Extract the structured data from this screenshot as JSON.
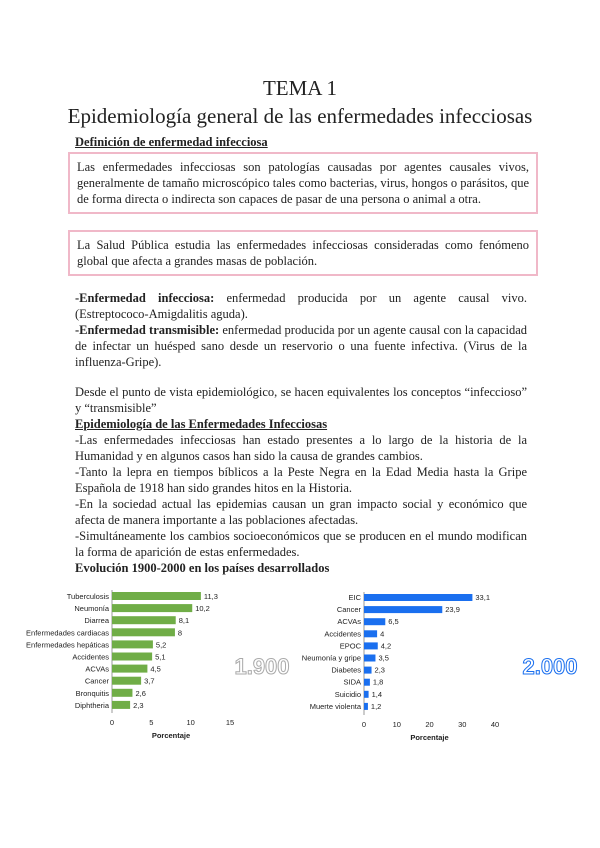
{
  "title": "TEMA 1",
  "subtitle": "Epidemiología general de las enfermedades infecciosas",
  "section1": "Definición de enfermedad infecciosa",
  "box1": "Las enfermedades infecciosas son patologías causadas por agentes causales vivos, generalmente de tamaño microscópico tales como bacterias, virus, hongos o parásitos, que de forma directa o indirecta son capaces de pasar de una persona o animal a otra.",
  "box2": "La Salud Pública estudia las enfermedades infecciosas consideradas como fenómeno global que afecta a grandes masas de población.",
  "def1_term": "-Enfermedad infecciosa:",
  "def1_text": " enfermedad producida por un agente causal vivo. (Estreptococo-Amigdalitis aguda).",
  "def2_term": "-Enfermedad transmisible:",
  "def2_text": " enfermedad producida por un agente causal con la capacidad de infectar un huésped sano desde un reservorio o una fuente infectiva. (Virus de la influenza-Gripe).",
  "para1": "Desde el punto de vista epidemiológico, se hacen equivalentes los conceptos “infeccioso” y “transmisible”",
  "section2": "Epidemiología de las Enfermedades Infecciosas",
  "bullets": [
    "-Las enfermedades infecciosas han estado presentes a lo largo de la historia de la Humanidad y en algunos casos han sido la causa de grandes cambios.",
    "-Tanto la lepra en tiempos bíblicos a la Peste Negra en la Edad Media hasta la Gripe Española de 1918 han sido grandes hitos en la Historia.",
    "-En la sociedad actual las epidemias causan un gran impacto social y económico que afecta de manera importante a las poblaciones afectadas.",
    "-Simultáneamente los cambios socioeconómicos que se producen en el mundo modifican la forma de aparición de estas enfermedades."
  ],
  "section3": "Evolución 1900-2000 en los países desarrollados",
  "chart_data": [
    {
      "type": "bar",
      "orientation": "horizontal",
      "watermark": "1.900",
      "color": "#70ad47",
      "categories": [
        "Tuberculosis",
        "Neumonía",
        "Diarrea",
        "Enfermedades cardiacas",
        "Enfermedades hepáticas",
        "Accidentes",
        "ACVAs",
        "Cancer",
        "Bronquitis",
        "Diphtheria"
      ],
      "values": [
        11.3,
        10.2,
        8.1,
        8,
        5.2,
        5.1,
        4.5,
        3.7,
        2.6,
        2.3
      ],
      "labels": [
        "11,3",
        "10,2",
        "8,1",
        "8",
        "5,2",
        "5,1",
        "4,5",
        "3,7",
        "2,6",
        "2,3"
      ],
      "xlabel": "Porcentaje",
      "xlim": [
        0,
        15
      ],
      "xticks": [
        "0",
        "5",
        "10",
        "15"
      ]
    },
    {
      "type": "bar",
      "orientation": "horizontal",
      "watermark": "2.000",
      "color": "#1a6fef",
      "categories": [
        "EIC",
        "Cancer",
        "ACVAs",
        "Accidentes",
        "EPOC",
        "Neumonía y gripe",
        "Diabetes",
        "SIDA",
        "Suicidio",
        "Muerte violenta"
      ],
      "values": [
        33.1,
        23.9,
        6.5,
        4,
        4.2,
        3.5,
        2.3,
        1.8,
        1.4,
        1.2
      ],
      "labels": [
        "33,1",
        "23,9",
        "6,5",
        "4",
        "4,2",
        "3,5",
        "2,3",
        "1,8",
        "1,4",
        "1,2"
      ],
      "xlabel": "Porcentaje",
      "xlim": [
        0,
        40
      ],
      "xticks": [
        "0",
        "10",
        "20",
        "30",
        "40"
      ]
    }
  ]
}
